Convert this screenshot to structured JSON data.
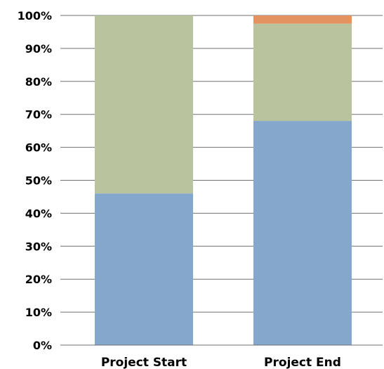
{
  "chart_data": {
    "type": "bar",
    "stacked": true,
    "categories": [
      "Project Start",
      "Project End"
    ],
    "series": [
      {
        "color": "#84a7cb",
        "values": [
          46,
          68
        ]
      },
      {
        "color": "#b9c39e",
        "values": [
          54,
          29.5
        ]
      },
      {
        "color": "#e2935f",
        "values": [
          0,
          2.5
        ]
      }
    ],
    "ylim": [
      0,
      100
    ],
    "yticks": [
      "0%",
      "10%",
      "20%",
      "30%",
      "40%",
      "50%",
      "60%",
      "70%",
      "80%",
      "90%",
      "100%"
    ],
    "grid": true,
    "legend": "none",
    "title": "",
    "xlabel": "",
    "ylabel": ""
  }
}
